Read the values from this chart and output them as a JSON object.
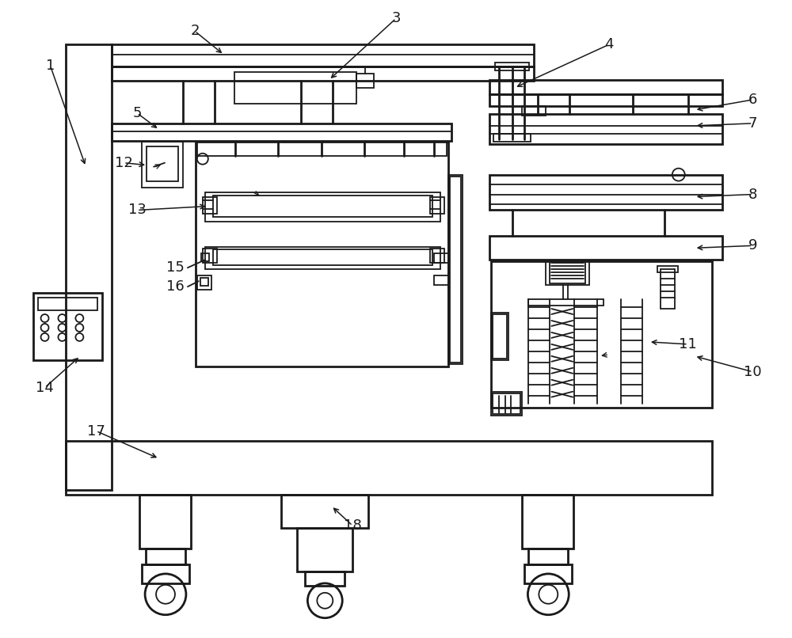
{
  "bg_color": "#ffffff",
  "line_color": "#1a1a1a",
  "lw": 1.3,
  "lw2": 2.0,
  "fig_width": 10.0,
  "fig_height": 8.06
}
